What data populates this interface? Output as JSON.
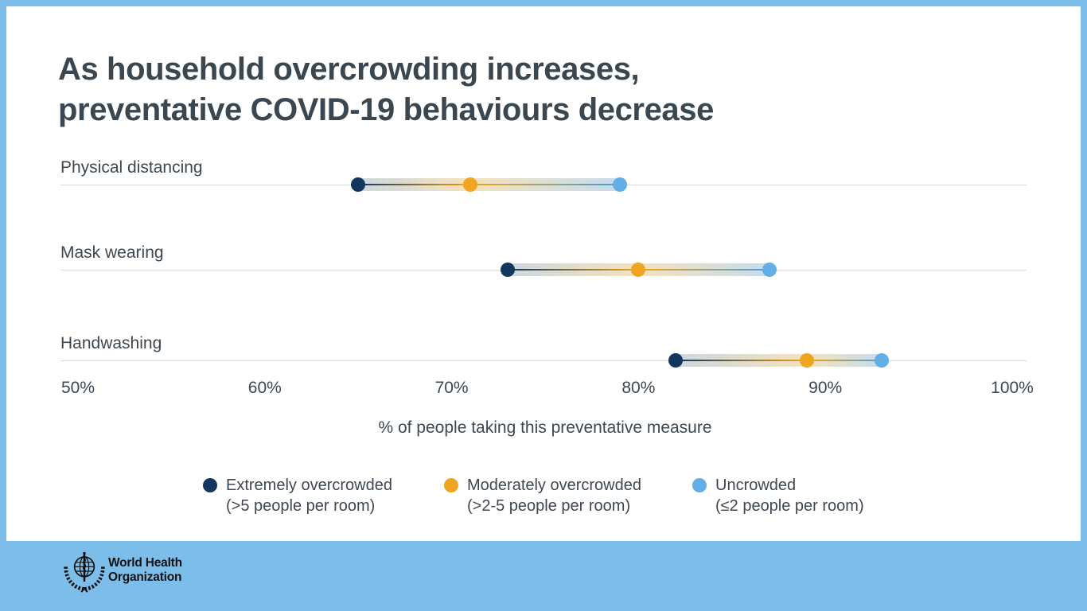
{
  "page": {
    "background": "#7CBEE9",
    "panel_background": "#FFFFFF"
  },
  "title": {
    "line1": "As household overcrowding increases,",
    "line2": "preventative COVID-19 behaviours decrease"
  },
  "chart_data": {
    "type": "scatter",
    "subtype": "dumbbell-dot-plot",
    "categories": [
      "Physical distancing",
      "Mask wearing",
      "Handwashing"
    ],
    "series": [
      {
        "name": "Extremely overcrowded (>5 people per room)",
        "color": "#13365F",
        "values": [
          65,
          73,
          82
        ]
      },
      {
        "name": "Moderately overcrowded (>2-5 people per room)",
        "color": "#EFA51F",
        "values": [
          71,
          80,
          89
        ]
      },
      {
        "name": "Uncrowded (≤2 people per room)",
        "color": "#61AFE6",
        "values": [
          79,
          87,
          93
        ]
      }
    ],
    "xlabel": "% of people taking this preventative measure",
    "xlim": [
      50,
      100
    ],
    "ticks": [
      {
        "value": 50,
        "label": "50%"
      },
      {
        "value": 60,
        "label": "60%"
      },
      {
        "value": 70,
        "label": "70%"
      },
      {
        "value": 80,
        "label": "80%"
      },
      {
        "value": 90,
        "label": "90%"
      },
      {
        "value": 100,
        "label": "100%"
      }
    ],
    "grid": "one horizontal line per category",
    "legend_position": "bottom"
  },
  "legend": {
    "items": [
      {
        "name": "Extremely overcrowded",
        "detail": "(>5 people per room)",
        "color": "#13365F"
      },
      {
        "name": "Moderately overcrowded",
        "detail": "(>2-5 people per room)",
        "color": "#EFA51F"
      },
      {
        "name": "Uncrowded",
        "detail": "(≤2 people per room)",
        "color": "#61AFE6"
      }
    ]
  },
  "footer": {
    "logo": "who-emblem-icon",
    "org_line1": "World Health",
    "org_line2": "Organization"
  },
  "colors": {
    "frame_blue": "#7CBEE9",
    "text_dark": "#3A4750",
    "gridline": "#D8DADC",
    "band_start": "#CBD6E0",
    "band_mid": "#F3E2BD",
    "band_end": "#C5DBEE",
    "line_end_blue": "#4BA0DB"
  }
}
